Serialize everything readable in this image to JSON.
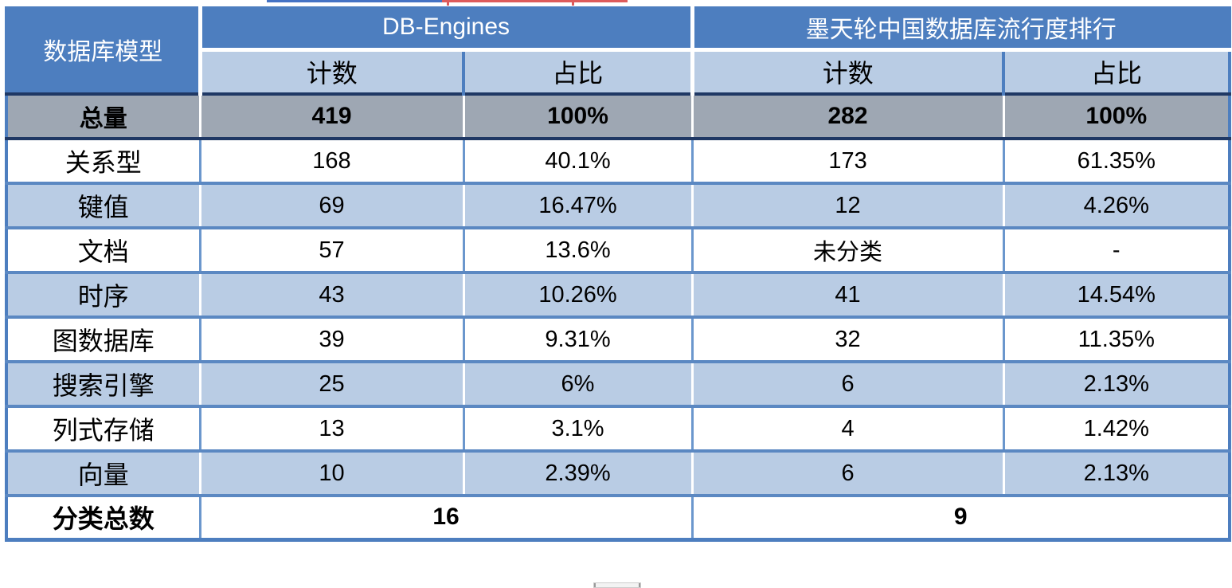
{
  "artifacts": {
    "top_blue_line": "cut-off blue underline fragment",
    "top_red_line": "cut-off red underline fragment",
    "bottom_scrollbar": "horizontal scrollbar fragment"
  },
  "colors": {
    "header_dark_blue": "#4d7ebf",
    "stripe_light_blue": "#b9cce4",
    "total_row_gray": "#9ea7b3",
    "grid_blue": "#5b88c2",
    "total_border_navy": "#1f3864",
    "artifact_red": "#dd5b5b",
    "artifact_blue": "#4472c4"
  },
  "table": {
    "header": {
      "model_label": "数据库模型",
      "sources": [
        {
          "name": "DB-Engines",
          "count_label": "计数",
          "share_label": "占比"
        },
        {
          "name": "墨天轮中国数据库流行度排行",
          "count_label": "计数",
          "share_label": "占比"
        }
      ]
    },
    "rows": [
      {
        "label": "总量",
        "de_count": "419",
        "de_share": "100%",
        "cn_count": "282",
        "cn_share": "100%",
        "variant": "total"
      },
      {
        "label": "关系型",
        "de_count": "168",
        "de_share": "40.1%",
        "cn_count": "173",
        "cn_share": "61.35%",
        "variant": "white"
      },
      {
        "label": "键值",
        "de_count": "69",
        "de_share": "16.47%",
        "cn_count": "12",
        "cn_share": "4.26%",
        "variant": "light"
      },
      {
        "label": "文档",
        "de_count": "57",
        "de_share": "13.6%",
        "cn_count": "未分类",
        "cn_share": "-",
        "variant": "white"
      },
      {
        "label": "时序",
        "de_count": "43",
        "de_share": "10.26%",
        "cn_count": "41",
        "cn_share": "14.54%",
        "variant": "light"
      },
      {
        "label": "图数据库",
        "de_count": "39",
        "de_share": "9.31%",
        "cn_count": "32",
        "cn_share": "11.35%",
        "variant": "white"
      },
      {
        "label": "搜索引擎",
        "de_count": "25",
        "de_share": "6%",
        "cn_count": "6",
        "cn_share": "2.13%",
        "variant": "light"
      },
      {
        "label": "列式存储",
        "de_count": "13",
        "de_share": "3.1%",
        "cn_count": "4",
        "cn_share": "1.42%",
        "variant": "white"
      },
      {
        "label": "向量",
        "de_count": "10",
        "de_share": "2.39%",
        "cn_count": "6",
        "cn_share": "2.13%",
        "variant": "light"
      }
    ],
    "footer": {
      "label": "分类总数",
      "db_engines_total": "16",
      "modb_total": "9"
    }
  },
  "chart_data": {
    "type": "table",
    "title": "数据库模型分布对比：DB-Engines vs 墨天轮中国数据库流行度排行",
    "columns": [
      "数据库模型",
      "DB-Engines 计数",
      "DB-Engines 占比",
      "墨天轮 计数",
      "墨天轮 占比"
    ],
    "rows": [
      [
        "总量",
        "419",
        "100%",
        "282",
        "100%"
      ],
      [
        "关系型",
        "168",
        "40.1%",
        "173",
        "61.35%"
      ],
      [
        "键值",
        "69",
        "16.47%",
        "12",
        "4.26%"
      ],
      [
        "文档",
        "57",
        "13.6%",
        "未分类",
        "-"
      ],
      [
        "时序",
        "43",
        "10.26%",
        "41",
        "14.54%"
      ],
      [
        "图数据库",
        "39",
        "9.31%",
        "32",
        "11.35%"
      ],
      [
        "搜索引擎",
        "25",
        "6%",
        "6",
        "2.13%"
      ],
      [
        "列式存储",
        "13",
        "3.1%",
        "4",
        "1.42%"
      ],
      [
        "向量",
        "10",
        "2.39%",
        "6",
        "2.13%"
      ],
      [
        "分类总数",
        "16",
        "",
        "9",
        ""
      ]
    ]
  }
}
